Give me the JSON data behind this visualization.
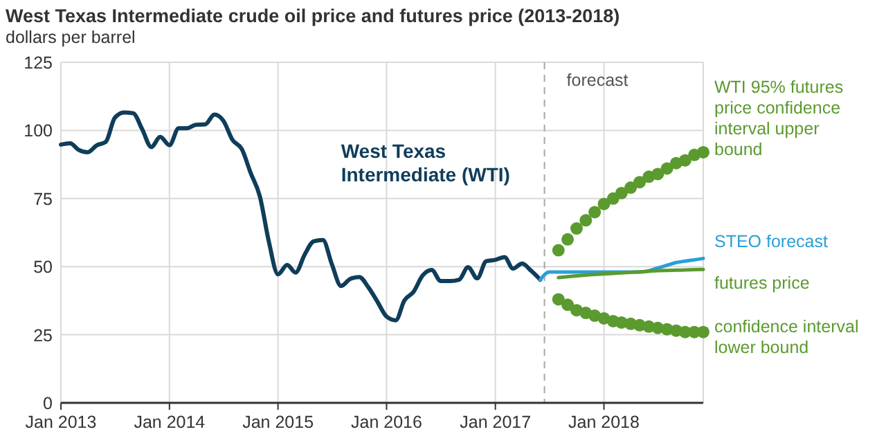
{
  "chart_data": {
    "type": "line",
    "title": "West Texas Intermediate crude oil price and futures price (2013-2018)",
    "ylabel": "dollars per barrel",
    "xlim": [
      "2013-01",
      "2018-12"
    ],
    "xticks": [
      {
        "value": "2013-01",
        "label": "Jan 2013"
      },
      {
        "value": "2014-01",
        "label": "Jan 2014"
      },
      {
        "value": "2015-01",
        "label": "Jan 2015"
      },
      {
        "value": "2016-01",
        "label": "Jan 2016"
      },
      {
        "value": "2017-01",
        "label": "Jan 2017"
      },
      {
        "value": "2018-01",
        "label": "Jan 2018"
      }
    ],
    "ylim": [
      0,
      125
    ],
    "yticks": [
      0,
      25,
      50,
      75,
      100,
      125
    ],
    "grid": true,
    "legend": "right",
    "ref_lines": [
      {
        "axis": "x",
        "value": "2017-06-15",
        "label": "forecast",
        "color": "#a6a6a6",
        "line_style": "dashed"
      }
    ],
    "series": [
      {
        "name": "West Texas Intermediate (WTI)",
        "color": "#0f3d5a",
        "marker": "none",
        "x": [
          "2013-01",
          "2013-02",
          "2013-03",
          "2013-04",
          "2013-05",
          "2013-06",
          "2013-07",
          "2013-08",
          "2013-09",
          "2013-10",
          "2013-11",
          "2013-12",
          "2014-01",
          "2014-02",
          "2014-03",
          "2014-04",
          "2014-05",
          "2014-06",
          "2014-07",
          "2014-08",
          "2014-09",
          "2014-10",
          "2014-11",
          "2014-12",
          "2015-01",
          "2015-02",
          "2015-03",
          "2015-04",
          "2015-05",
          "2015-06",
          "2015-07",
          "2015-08",
          "2015-09",
          "2015-10",
          "2015-11",
          "2015-12",
          "2016-01",
          "2016-02",
          "2016-03",
          "2016-04",
          "2016-05",
          "2016-06",
          "2016-07",
          "2016-08",
          "2016-09",
          "2016-10",
          "2016-11",
          "2016-12",
          "2017-01",
          "2017-02",
          "2017-03",
          "2017-04",
          "2017-05",
          "2017-06"
        ],
        "values": [
          94.8,
          95.3,
          92.9,
          92.0,
          94.5,
          95.8,
          104.6,
          106.6,
          106.3,
          100.5,
          93.9,
          97.6,
          94.6,
          100.8,
          100.8,
          102.1,
          102.2,
          105.8,
          103.6,
          96.5,
          93.2,
          84.4,
          75.8,
          59.3,
          47.2,
          50.6,
          47.8,
          54.5,
          59.3,
          59.8,
          50.9,
          42.9,
          45.5,
          46.2,
          42.4,
          37.2,
          31.7,
          30.3,
          37.6,
          40.8,
          46.7,
          48.8,
          44.7,
          44.7,
          45.2,
          49.8,
          45.7,
          52.0,
          52.5,
          53.5,
          49.3,
          51.1,
          48.5,
          45.2
        ]
      },
      {
        "name": "WTI 95% futures price confidence interval upper bound",
        "type": "scatter",
        "color": "#5b9a2e",
        "marker": "circle",
        "x": [
          "2017-08",
          "2017-09",
          "2017-10",
          "2017-11",
          "2017-12",
          "2018-01",
          "2018-02",
          "2018-03",
          "2018-04",
          "2018-05",
          "2018-06",
          "2018-07",
          "2018-08",
          "2018-09",
          "2018-10",
          "2018-11",
          "2018-12"
        ],
        "values": [
          56,
          60,
          64,
          67,
          70,
          73,
          75,
          77,
          79,
          81,
          83,
          84,
          86,
          88,
          89,
          91,
          92
        ]
      },
      {
        "name": "STEO forecast",
        "color": "#2a9fd8",
        "marker": "none",
        "x": [
          "2017-06",
          "2017-07",
          "2017-08",
          "2017-09",
          "2017-10",
          "2017-11",
          "2017-12",
          "2018-01",
          "2018-02",
          "2018-03",
          "2018-04",
          "2018-05",
          "2018-06",
          "2018-07",
          "2018-08",
          "2018-09",
          "2018-10",
          "2018-11",
          "2018-12"
        ],
        "values": [
          45.2,
          48,
          48,
          48,
          48,
          48,
          48,
          48,
          48,
          48,
          48,
          48,
          48.5,
          49.5,
          50.5,
          51.5,
          52,
          52.5,
          53
        ]
      },
      {
        "name": "futures price",
        "color": "#5b9a2e",
        "marker": "none",
        "x": [
          "2017-08",
          "2017-09",
          "2017-10",
          "2017-11",
          "2017-12",
          "2018-01",
          "2018-02",
          "2018-03",
          "2018-04",
          "2018-05",
          "2018-06",
          "2018-07",
          "2018-08",
          "2018-09",
          "2018-10",
          "2018-11",
          "2018-12"
        ],
        "values": [
          46,
          46.3,
          46.6,
          46.9,
          47.1,
          47.3,
          47.5,
          47.7,
          47.9,
          48.1,
          48.3,
          48.5,
          48.6,
          48.7,
          48.8,
          48.9,
          49
        ]
      },
      {
        "name": "confidence interval lower bound",
        "type": "scatter",
        "color": "#5b9a2e",
        "marker": "circle",
        "x": [
          "2017-08",
          "2017-09",
          "2017-10",
          "2017-11",
          "2017-12",
          "2018-01",
          "2018-02",
          "2018-03",
          "2018-04",
          "2018-05",
          "2018-06",
          "2018-07",
          "2018-08",
          "2018-09",
          "2018-10",
          "2018-11",
          "2018-12"
        ],
        "values": [
          38,
          36,
          34,
          33,
          32,
          31,
          30,
          29.5,
          29,
          28.5,
          28,
          27.5,
          27,
          26.5,
          26,
          26,
          26
        ]
      }
    ]
  }
}
